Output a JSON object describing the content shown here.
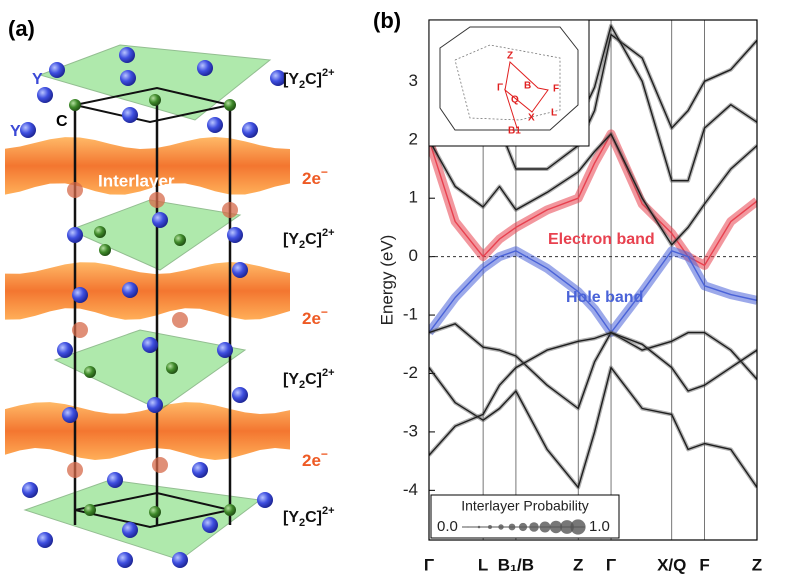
{
  "panel_a": {
    "label": "(a)",
    "atom_labels": [
      "Y",
      "Y",
      "C"
    ],
    "interlayer_label": "Interlayer",
    "layers": [
      {
        "pre": "[Y",
        "sub": "2",
        "mid": "C]",
        "sup": "2+"
      },
      {
        "pre": "[Y",
        "sub": "2",
        "mid": "C]",
        "sup": "2+"
      },
      {
        "pre": "[Y",
        "sub": "2",
        "mid": "C]",
        "sup": "2+"
      },
      {
        "pre": "[Y",
        "sub": "2",
        "mid": "C]",
        "sup": "2+"
      }
    ],
    "electrons": [
      {
        "base": "2e",
        "sup": "−"
      },
      {
        "base": "2e",
        "sup": "−"
      },
      {
        "base": "2e",
        "sup": "−"
      }
    ]
  },
  "chart_data": {
    "type": "line",
    "panel_label": "(b)",
    "y_label": "Energy (eV)",
    "x": [
      0,
      0.08,
      0.165,
      0.215,
      0.265,
      0.36,
      0.455,
      0.505,
      0.555,
      0.65,
      0.74,
      0.79,
      0.84,
      0.92,
      1
    ],
    "xlim": [
      0,
      1
    ],
    "xticks": [
      {
        "value": 0,
        "label": "Γ"
      },
      {
        "value": 0.165,
        "label": "L"
      },
      {
        "value": 0.265,
        "label": "B₁/B"
      },
      {
        "value": 0.455,
        "label": "Z"
      },
      {
        "value": 0.555,
        "label": "Γ"
      },
      {
        "value": 0.74,
        "label": "X/Q"
      },
      {
        "value": 0.84,
        "label": "F"
      },
      {
        "value": 1,
        "label": "Z"
      }
    ],
    "ylim": [
      -4.85,
      4.05
    ],
    "yticks": [
      -4,
      -3,
      -2,
      -1,
      0,
      1,
      2,
      3
    ],
    "series": [
      {
        "name": "Electron band",
        "color": "#e8414f",
        "values": [
          2.0,
          0.6,
          0.0,
          0.3,
          0.5,
          0.8,
          1.0,
          1.6,
          2.1,
          0.9,
          0.4,
          0.0,
          -0.15,
          0.6,
          0.95
        ]
      },
      {
        "name": "Hole band",
        "color": "#4a63d8",
        "values": [
          -1.3,
          -0.7,
          -0.2,
          0.0,
          0.1,
          -0.2,
          -0.6,
          -0.9,
          -1.3,
          -0.6,
          0.1,
          0.0,
          -0.5,
          -0.65,
          -0.75
        ]
      },
      {
        "color": "#1e1e1e",
        "values": [
          -1.3,
          -1.15,
          -1.55,
          -1.6,
          -1.7,
          -2.2,
          -2.6,
          -1.8,
          -1.3,
          -1.6,
          -1.45,
          -1.3,
          -1.3,
          -1.6,
          -2.1
        ]
      },
      {
        "color": "#1e1e1e",
        "values": [
          -1.9,
          -2.5,
          -2.8,
          -2.6,
          -2.3,
          -3.3,
          -3.95,
          -3.0,
          -1.9,
          -2.6,
          -2.7,
          -3.3,
          -3.2,
          -3.3,
          -3.95
        ]
      },
      {
        "color": "#1e1e1e",
        "values": [
          -3.4,
          -2.9,
          -2.7,
          -2.2,
          -1.9,
          -1.6,
          -1.45,
          -1.4,
          -1.3,
          -1.5,
          -1.9,
          -2.3,
          -2.2,
          -1.9,
          -1.6
        ]
      },
      {
        "color": "#1e1e1e",
        "values": [
          2.0,
          1.2,
          0.85,
          1.2,
          0.8,
          1.1,
          1.45,
          1.8,
          2.1,
          1.0,
          0.2,
          0.5,
          0.9,
          1.5,
          1.9
        ]
      },
      {
        "color": "#1e1e1e",
        "values": [
          3.9,
          3.3,
          2.5,
          2.2,
          1.5,
          1.5,
          1.9,
          2.5,
          3.8,
          3.4,
          2.2,
          2.5,
          3.0,
          3.2,
          3.7
        ]
      },
      {
        "color": "#1e1e1e",
        "values": [
          4.0,
          3.8,
          3.6,
          3.3,
          2.9,
          2.6,
          2.3,
          2.9,
          3.95,
          3.0,
          1.3,
          1.3,
          2.2,
          2.6,
          2.3
        ]
      }
    ],
    "annotations": [
      {
        "text": "Electron band",
        "color": "#e8414f"
      },
      {
        "text": "Hole band",
        "color": "#4a63d8"
      }
    ],
    "legend": {
      "title": "Interlayer Probability",
      "min_label": "0.0",
      "max_label": "1.0"
    },
    "inset_labels": [
      "Z",
      "B",
      "Γ",
      "Q",
      "F",
      "X",
      "L",
      "B1"
    ]
  }
}
